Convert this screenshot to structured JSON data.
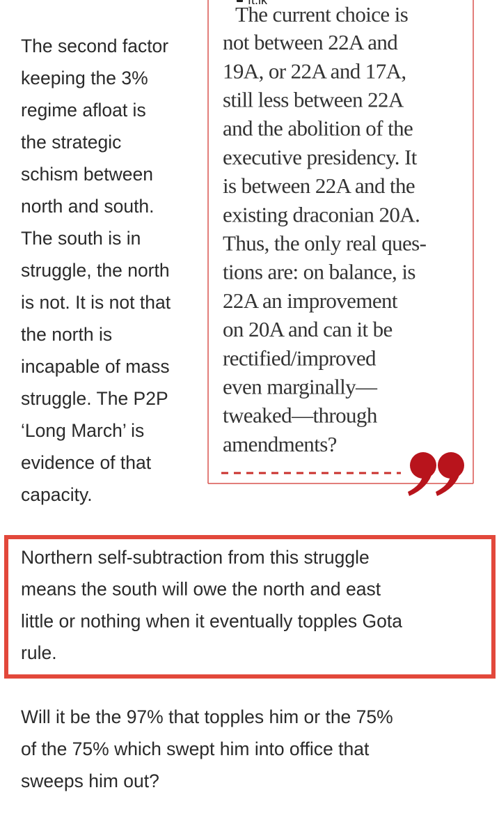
{
  "address_bar": {
    "url": "ft.lk"
  },
  "left_column": {
    "lines": [
      "The second factor",
      "keeping the 3%",
      "regime afloat is",
      "the strategic",
      "schism between",
      "north and south.",
      "The south is in",
      "struggle, the north",
      "is not. It is not that",
      "the north is",
      "incapable of mass",
      "struggle. The P2P",
      "‘Long March’ is",
      "evidence of that",
      "capacity."
    ]
  },
  "pull_quote": {
    "cut_line": "The current choice is",
    "lines": [
      "not between 22A and",
      "19A, or 22A and 17A,",
      "still less between 22A",
      "and the abolition of the",
      "executive presidency. It",
      "is between 22A and the",
      "existing draconian 20A.",
      "Thus, the only real ques-",
      "tions are: on balance, is",
      "22A an improvement",
      "on 20A and can it be",
      "rectified/improved",
      "even marginally—",
      "tweaked—through",
      "amendments?"
    ]
  },
  "highlight": {
    "lines": [
      "Northern self-subtraction from this struggle",
      "means the south will owe the north and east",
      "little or nothing when it eventually topples Gota",
      "rule."
    ]
  },
  "closing": {
    "lines": [
      "Will it be the 97% that topples him or the 75%",
      "of the 75% which swept him into office that",
      "sweeps him out?"
    ]
  }
}
